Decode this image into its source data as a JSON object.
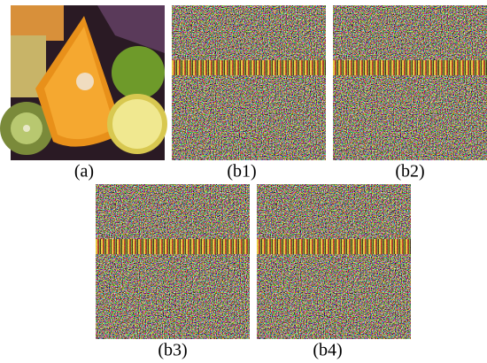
{
  "panels": [
    {
      "label": "(a)"
    },
    {
      "label": "(b1)"
    },
    {
      "label": "(b2)"
    },
    {
      "label": "(b3)"
    },
    {
      "label": "(b4)"
    }
  ]
}
